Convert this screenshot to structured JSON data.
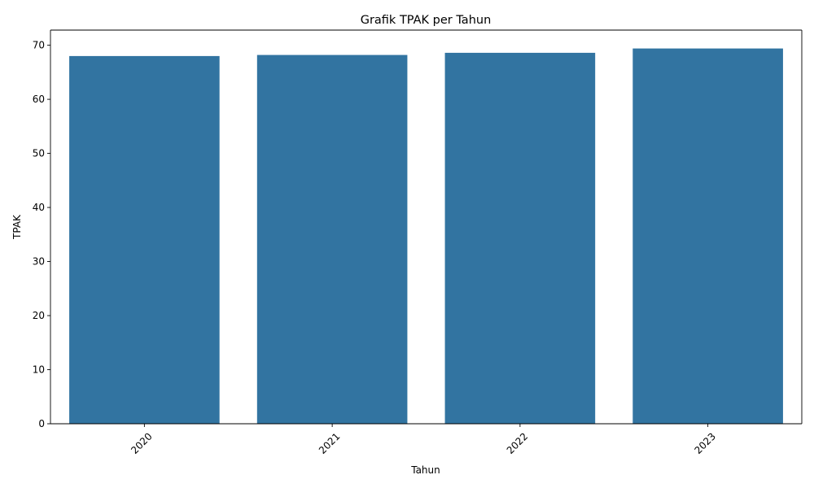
{
  "chart_data": {
    "type": "bar",
    "title": "Grafik TPAK per Tahun",
    "xlabel": "Tahun",
    "ylabel": "TPAK",
    "categories": [
      "2020",
      "2021",
      "2022",
      "2023"
    ],
    "values": [
      68.0,
      68.2,
      68.6,
      69.4
    ],
    "ylim": [
      0,
      72.8
    ],
    "yticks": [
      "0",
      "10",
      "20",
      "30",
      "40",
      "50",
      "60",
      "70"
    ],
    "xtick_rotation_deg": 45,
    "bar_color": "#3274a1",
    "grid": false,
    "legend": "none"
  }
}
